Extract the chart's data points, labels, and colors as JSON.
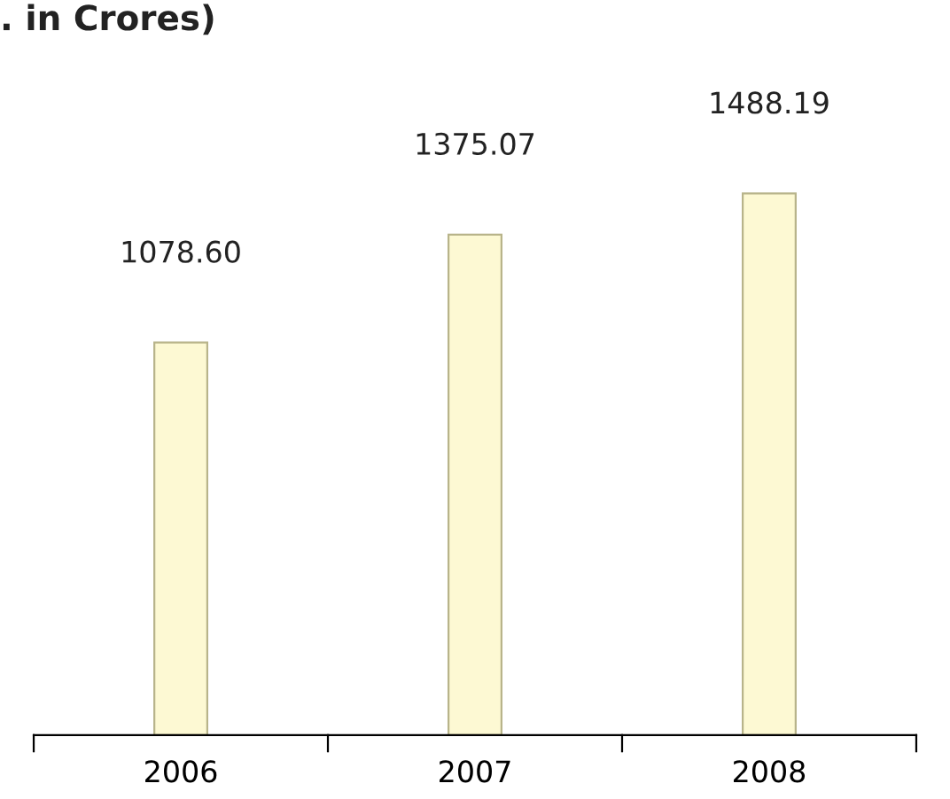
{
  "chart_data": {
    "type": "bar",
    "title": ". in Crores)",
    "categories": [
      "2006",
      "2007",
      "2008"
    ],
    "values": [
      1078.6,
      1375.07,
      1488.19
    ],
    "value_labels": [
      "1078.60",
      "1375.07",
      "1488.19"
    ],
    "color": "#fdf9d3",
    "grid": false,
    "legend": false
  }
}
